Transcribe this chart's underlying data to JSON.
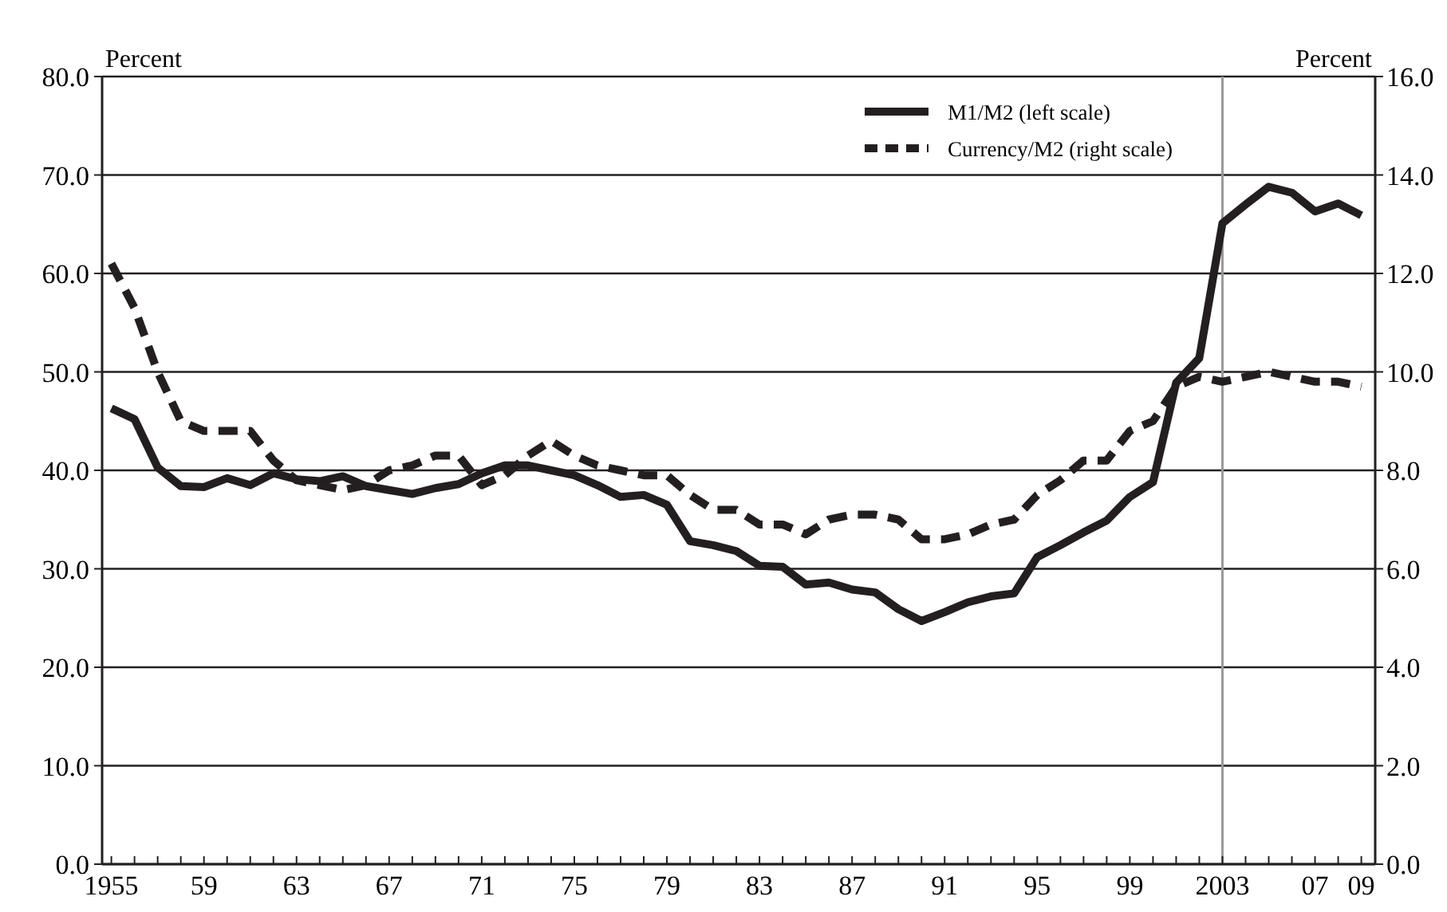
{
  "chart_data": {
    "type": "line",
    "ylabel": "Percent",
    "y2label": "Percent",
    "x": [
      1955,
      1956,
      1957,
      1958,
      1959,
      1960,
      1961,
      1962,
      1963,
      1964,
      1965,
      1966,
      1967,
      1968,
      1969,
      1970,
      1971,
      1972,
      1973,
      1974,
      1975,
      1976,
      1977,
      1978,
      1979,
      1980,
      1981,
      1982,
      1983,
      1984,
      1985,
      1986,
      1987,
      1988,
      1989,
      1990,
      1991,
      1992,
      1993,
      1994,
      1995,
      1996,
      1997,
      1998,
      1999,
      2000,
      2001,
      2002,
      2003,
      2004,
      2005,
      2006,
      2007,
      2008,
      2009
    ],
    "series": [
      {
        "name": "M1/M2 (left scale)",
        "color": "#231f20",
        "line_style": "solid",
        "values": [
          46.3,
          45.2,
          40.3,
          38.4,
          38.3,
          39.2,
          38.5,
          39.7,
          39.1,
          38.9,
          39.4,
          38.4,
          38.0,
          37.6,
          38.2,
          38.6,
          39.7,
          40.5,
          40.5,
          40.0,
          39.5,
          38.5,
          37.3,
          37.5,
          36.5,
          32.8,
          32.4,
          31.8,
          30.3,
          30.2,
          28.4,
          28.6,
          27.9,
          27.6,
          25.9,
          24.7,
          25.6,
          26.6,
          27.2,
          27.5,
          31.2,
          32.4,
          33.7,
          34.9,
          37.3,
          38.8,
          48.9,
          51.4,
          65.1,
          67.0,
          68.8,
          68.2,
          66.3,
          67.1,
          65.9
        ]
      },
      {
        "name": "Currency/M2 (right scale)",
        "color": "#231f20",
        "line_style": "dashed",
        "axis": "y2",
        "values": [
          12.2,
          11.3,
          10.0,
          9.0,
          8.8,
          8.8,
          8.8,
          8.2,
          7.8,
          7.7,
          7.6,
          7.7,
          8.0,
          8.1,
          8.3,
          8.3,
          7.7,
          7.9,
          8.3,
          8.6,
          8.3,
          8.1,
          8.0,
          7.9,
          7.9,
          7.5,
          7.2,
          7.2,
          6.9,
          6.9,
          6.7,
          7.0,
          7.1,
          7.1,
          7.0,
          6.6,
          6.6,
          6.7,
          6.9,
          7.0,
          7.5,
          7.8,
          8.2,
          8.2,
          8.8,
          9.0,
          9.7,
          9.9,
          9.8,
          9.9,
          10.0,
          9.9,
          9.8,
          9.8,
          9.7
        ]
      }
    ],
    "xlim": [
      1954.6,
      2009.6
    ],
    "xticks": [
      {
        "value": 1955,
        "label": "1955"
      },
      {
        "value": 1956,
        "label": null
      },
      {
        "value": 1957,
        "label": null
      },
      {
        "value": 1958,
        "label": null
      },
      {
        "value": 1959,
        "label": "59"
      },
      {
        "value": 1960,
        "label": null
      },
      {
        "value": 1961,
        "label": null
      },
      {
        "value": 1962,
        "label": null
      },
      {
        "value": 1963,
        "label": "63"
      },
      {
        "value": 1964,
        "label": null
      },
      {
        "value": 1965,
        "label": null
      },
      {
        "value": 1966,
        "label": null
      },
      {
        "value": 1967,
        "label": "67"
      },
      {
        "value": 1968,
        "label": null
      },
      {
        "value": 1969,
        "label": null
      },
      {
        "value": 1970,
        "label": null
      },
      {
        "value": 1971,
        "label": "71"
      },
      {
        "value": 1972,
        "label": null
      },
      {
        "value": 1973,
        "label": null
      },
      {
        "value": 1974,
        "label": null
      },
      {
        "value": 1975,
        "label": "75"
      },
      {
        "value": 1976,
        "label": null
      },
      {
        "value": 1977,
        "label": null
      },
      {
        "value": 1978,
        "label": null
      },
      {
        "value": 1979,
        "label": "79"
      },
      {
        "value": 1980,
        "label": null
      },
      {
        "value": 1981,
        "label": null
      },
      {
        "value": 1982,
        "label": null
      },
      {
        "value": 1983,
        "label": "83"
      },
      {
        "value": 1984,
        "label": null
      },
      {
        "value": 1985,
        "label": null
      },
      {
        "value": 1986,
        "label": null
      },
      {
        "value": 1987,
        "label": "87"
      },
      {
        "value": 1988,
        "label": null
      },
      {
        "value": 1989,
        "label": null
      },
      {
        "value": 1990,
        "label": null
      },
      {
        "value": 1991,
        "label": "91"
      },
      {
        "value": 1992,
        "label": null
      },
      {
        "value": 1993,
        "label": null
      },
      {
        "value": 1994,
        "label": null
      },
      {
        "value": 1995,
        "label": "95"
      },
      {
        "value": 1996,
        "label": null
      },
      {
        "value": 1997,
        "label": null
      },
      {
        "value": 1998,
        "label": null
      },
      {
        "value": 1999,
        "label": "99"
      },
      {
        "value": 2000,
        "label": null
      },
      {
        "value": 2001,
        "label": null
      },
      {
        "value": 2002,
        "label": null
      },
      {
        "value": 2003,
        "label": "2003"
      },
      {
        "value": 2004,
        "label": null
      },
      {
        "value": 2005,
        "label": null
      },
      {
        "value": 2006,
        "label": null
      },
      {
        "value": 2007,
        "label": "07"
      },
      {
        "value": 2008,
        "label": null
      },
      {
        "value": 2009,
        "label": "09"
      }
    ],
    "ylim": [
      0,
      80
    ],
    "yticks": [
      {
        "value": 0,
        "label": "0.0"
      },
      {
        "value": 10,
        "label": "10.0"
      },
      {
        "value": 20,
        "label": "20.0"
      },
      {
        "value": 30,
        "label": "30.0"
      },
      {
        "value": 40,
        "label": "40.0"
      },
      {
        "value": 50,
        "label": "50.0"
      },
      {
        "value": 60,
        "label": "60.0"
      },
      {
        "value": 70,
        "label": "70.0"
      },
      {
        "value": 80,
        "label": "80.0"
      }
    ],
    "y2lim": [
      0,
      16
    ],
    "y2ticks": [
      {
        "value": 0,
        "label": "0.0"
      },
      {
        "value": 2,
        "label": "2.0"
      },
      {
        "value": 4,
        "label": "4.0"
      },
      {
        "value": 6,
        "label": "6.0"
      },
      {
        "value": 8,
        "label": "8.0"
      },
      {
        "value": 10,
        "label": "10.0"
      },
      {
        "value": 12,
        "label": "12.0"
      },
      {
        "value": 14,
        "label": "14.0"
      },
      {
        "value": 16,
        "label": "16.0"
      }
    ],
    "ref_lines": [
      {
        "axis": "x",
        "value": 2003,
        "color": "#999999"
      }
    ],
    "grid": "y",
    "legend": "top right"
  }
}
